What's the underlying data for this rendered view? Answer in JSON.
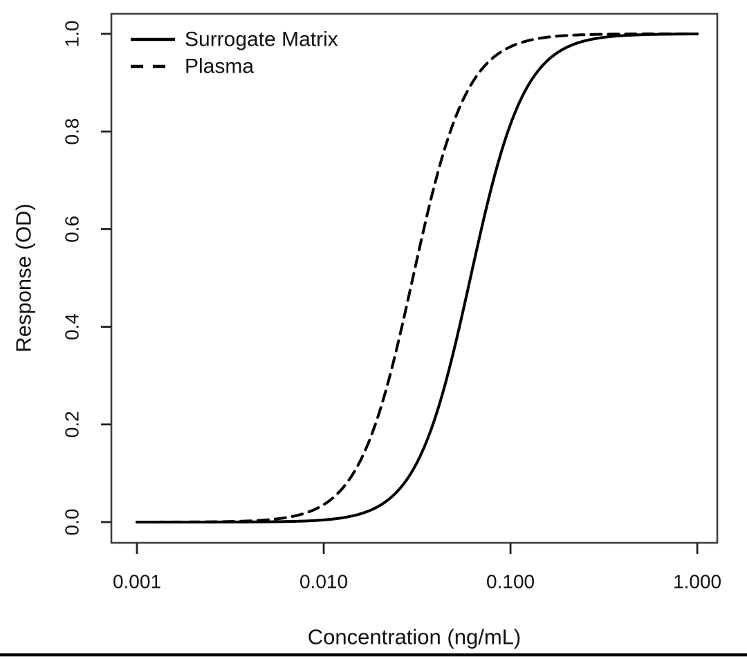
{
  "figure": {
    "background": "#ffffff",
    "frame_color": "#3f3f3f",
    "tick_color": "#222222",
    "text_color": "#111111",
    "curve_color": "#000000",
    "bottom_rule_color": "#000000"
  },
  "chart_data": {
    "type": "line",
    "title": "",
    "xlabel": "Concentration (ng/mL)",
    "ylabel": "Response (OD)",
    "x_scale": "log10",
    "xlim_log10": [
      -3.137,
      0.107
    ],
    "ylim": [
      -0.0425,
      1.041
    ],
    "grid": false,
    "x_ticks": [
      {
        "value": 0.001,
        "value_log10": -3,
        "label": "0.001"
      },
      {
        "value": 0.01,
        "value_log10": -2,
        "label": "0.010"
      },
      {
        "value": 0.1,
        "value_log10": -1,
        "label": "0.100"
      },
      {
        "value": 1.0,
        "value_log10": 0,
        "label": "1.000"
      }
    ],
    "y_ticks": [
      {
        "value": 0.0,
        "label": "0.0"
      },
      {
        "value": 0.2,
        "label": "0.2"
      },
      {
        "value": 0.4,
        "label": "0.4"
      },
      {
        "value": 0.6,
        "label": "0.6"
      },
      {
        "value": 0.8,
        "label": "0.8"
      },
      {
        "value": 1.0,
        "label": "1.0"
      }
    ],
    "legend": {
      "position": "top-left",
      "entries": [
        {
          "label": "Surrogate Matrix",
          "line_style": "solid"
        },
        {
          "label": "Plasma",
          "line_style": "dashed"
        }
      ]
    },
    "series": [
      {
        "name": "Surrogate Matrix",
        "line_style": "solid",
        "model": "4PL logistic on log10 concentration",
        "bottom": 0.0,
        "top": 1.0,
        "ec50_ng_ml": 0.061,
        "hill_slope": 3.0,
        "x_range_log10": [
          -3,
          0
        ],
        "sample_points": {
          "x_ng_ml": [
            0.001,
            0.01,
            0.02,
            0.04,
            0.061,
            0.1,
            0.2,
            0.4,
            1.0
          ],
          "y_od": [
            0.0,
            0.004,
            0.034,
            0.22,
            0.5,
            0.82,
            0.97,
            1.0,
            1.0
          ]
        }
      },
      {
        "name": "Plasma",
        "line_style": "dashed",
        "model": "4PL logistic on log10 concentration",
        "bottom": 0.0,
        "top": 1.0,
        "ec50_ng_ml": 0.03,
        "hill_slope": 3.0,
        "x_range_log10": [
          -3,
          0
        ],
        "sample_points": {
          "x_ng_ml": [
            0.001,
            0.01,
            0.02,
            0.03,
            0.04,
            0.1,
            0.2,
            0.4,
            1.0
          ],
          "y_od": [
            0.0,
            0.036,
            0.23,
            0.5,
            0.7,
            0.97,
            1.0,
            1.0,
            1.0
          ]
        }
      }
    ]
  }
}
